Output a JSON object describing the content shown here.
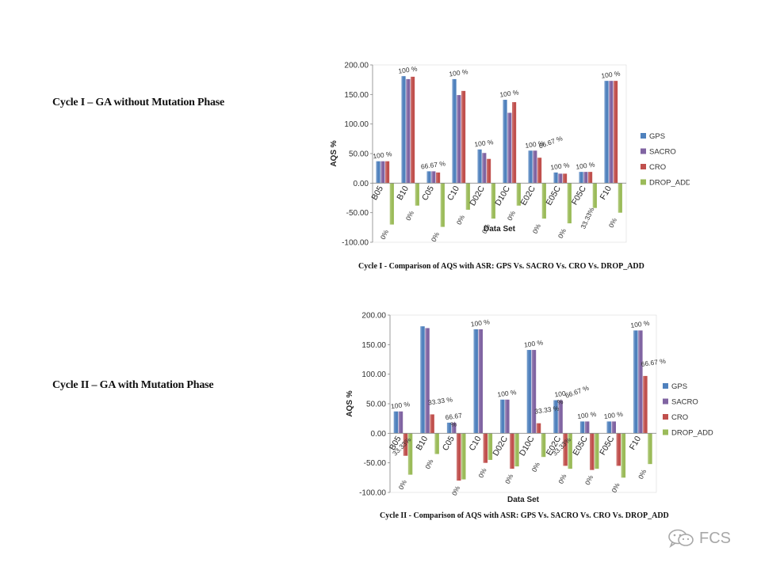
{
  "titles": {
    "cycle1": "Cycle I – GA without Mutation Phase",
    "cycle2": "Cycle II – GA with Mutation Phase"
  },
  "captions": {
    "cycle1": "Cycle I - Comparison of AQS with ASR: GPS Vs. SACRO Vs. CRO Vs. DROP_ADD",
    "cycle2": "Cycle II - Comparison of AQS with ASR: GPS Vs. SACRO Vs. CRO Vs. DROP_ADD"
  },
  "watermark": {
    "text": "FCS",
    "icon": "wechat-icon"
  },
  "colors": {
    "GPS": "#4f81bd",
    "SACRO": "#8064a2",
    "CRO": "#c0504d",
    "DROP_ADD": "#9bbb59"
  },
  "chart_data": [
    {
      "type": "bar",
      "xlabel": "Data Set",
      "ylabel": "AQS %",
      "ylim": [
        -100,
        200
      ],
      "yticks": [
        "200.00",
        "150.00",
        "100.00",
        "50.00",
        "0.00",
        "-50.00",
        "-100.00"
      ],
      "legend_position": "right",
      "categories": [
        "B05",
        "B10",
        "C05",
        "C10",
        "D02C",
        "D10C",
        "E02C",
        "E05C",
        "F05C",
        "F10"
      ],
      "series": [
        {
          "name": "GPS",
          "values": [
            37,
            181,
            20,
            176,
            57,
            141,
            55,
            18,
            19,
            173
          ]
        },
        {
          "name": "SACRO",
          "values": [
            37,
            176,
            20,
            149,
            51,
            119,
            55,
            16,
            19,
            173
          ]
        },
        {
          "name": "CRO",
          "values": [
            37,
            180,
            18,
            156,
            41,
            137,
            43,
            16,
            19,
            173
          ]
        },
        {
          "name": "DROP_ADD",
          "values": [
            -70,
            -38,
            -74,
            -45,
            -60,
            -38,
            -60,
            -68,
            -42,
            -50
          ]
        }
      ],
      "annotations": [
        {
          "category": "B05",
          "text": "100 %",
          "anchor": "top"
        },
        {
          "category": "B10",
          "text": "100 %",
          "anchor": "top"
        },
        {
          "category": "C05",
          "text": "66.67 %",
          "anchor": "top"
        },
        {
          "category": "C10",
          "text": "100 %",
          "anchor": "top"
        },
        {
          "category": "D02C",
          "text": "100 %",
          "anchor": "top"
        },
        {
          "category": "D10C",
          "text": "100 %",
          "anchor": "top"
        },
        {
          "category": "E02C",
          "text": "100 %",
          "anchor": "top"
        },
        {
          "category": "E02C",
          "text": "66.67 %",
          "anchor": "top2"
        },
        {
          "category": "E05C",
          "text": "100 %",
          "anchor": "top"
        },
        {
          "category": "F05C",
          "text": "100 %",
          "anchor": "top"
        },
        {
          "category": "F10",
          "text": "100 %",
          "anchor": "top"
        },
        {
          "category": "B05",
          "text": "0%",
          "anchor": "bottom"
        },
        {
          "category": "B10",
          "text": "0%",
          "anchor": "bottom"
        },
        {
          "category": "C05",
          "text": "0%",
          "anchor": "bottom"
        },
        {
          "category": "C10",
          "text": "0%",
          "anchor": "bottom"
        },
        {
          "category": "D02C",
          "text": "0%",
          "anchor": "bottom"
        },
        {
          "category": "D10C",
          "text": "0%",
          "anchor": "bottom"
        },
        {
          "category": "E02C",
          "text": "0%",
          "anchor": "bottom"
        },
        {
          "category": "E05C",
          "text": "0%",
          "anchor": "bottom"
        },
        {
          "category": "F05C",
          "text": "33.33%",
          "anchor": "bottom"
        },
        {
          "category": "F10",
          "text": "0%",
          "anchor": "bottom"
        }
      ]
    },
    {
      "type": "bar",
      "xlabel": "Data Set",
      "ylabel": "AQS %",
      "ylim": [
        -100,
        200
      ],
      "yticks": [
        "200.00",
        "150.00",
        "100.00",
        "50.00",
        "0.00",
        "-50.00",
        "-100.00"
      ],
      "legend_position": "right",
      "categories": [
        "B05",
        "B10",
        "C05",
        "C10",
        "D02C",
        "D10C",
        "E02C",
        "E05C",
        "F05C",
        "F10"
      ],
      "series": [
        {
          "name": "GPS",
          "values": [
            37,
            181,
            18,
            176,
            57,
            141,
            56,
            20,
            20,
            174
          ]
        },
        {
          "name": "SACRO",
          "values": [
            37,
            178,
            18,
            176,
            57,
            141,
            56,
            20,
            20,
            174
          ]
        },
        {
          "name": "CRO",
          "values": [
            -38,
            32,
            -80,
            -50,
            -60,
            17,
            -55,
            -62,
            -55,
            97
          ]
        },
        {
          "name": "DROP_ADD",
          "values": [
            -70,
            -35,
            -78,
            -45,
            -56,
            -40,
            -60,
            -60,
            -75,
            -52
          ]
        }
      ],
      "annotations": [
        {
          "category": "B05",
          "text": "100 %",
          "anchor": "top"
        },
        {
          "category": "B10",
          "text": "33.33 %",
          "anchor": "cro"
        },
        {
          "category": "C05",
          "text": "66.67",
          "anchor": "top"
        },
        {
          "category": "C05",
          "text": "%",
          "anchor": "top-low"
        },
        {
          "category": "C10",
          "text": "100 %",
          "anchor": "top"
        },
        {
          "category": "D02C",
          "text": "100 %",
          "anchor": "top"
        },
        {
          "category": "D10C",
          "text": "100 %",
          "anchor": "top"
        },
        {
          "category": "D10C",
          "text": "33.33 %",
          "anchor": "cro"
        },
        {
          "category": "E02C",
          "text": "100",
          "anchor": "top"
        },
        {
          "category": "E02C",
          "text": "%",
          "anchor": "top-low"
        },
        {
          "category": "E02C",
          "text": "66.67 %",
          "anchor": "top-right"
        },
        {
          "category": "E05C",
          "text": "100 %",
          "anchor": "top"
        },
        {
          "category": "F05C",
          "text": "100 %",
          "anchor": "top"
        },
        {
          "category": "F10",
          "text": "100 %",
          "anchor": "top"
        },
        {
          "category": "F10",
          "text": "66.67 %",
          "anchor": "cro"
        },
        {
          "category": "B05",
          "text": "33.33%",
          "anchor": "bottom-mid"
        },
        {
          "category": "E02C",
          "text": "33.33%",
          "anchor": "bottom-mid"
        },
        {
          "category": "B05",
          "text": "0%",
          "anchor": "bottom"
        },
        {
          "category": "B10",
          "text": "0%",
          "anchor": "bottom"
        },
        {
          "category": "C05",
          "text": "0%",
          "anchor": "bottom"
        },
        {
          "category": "C10",
          "text": "0%",
          "anchor": "bottom"
        },
        {
          "category": "D02C",
          "text": "0%",
          "anchor": "bottom"
        },
        {
          "category": "D10C",
          "text": "0%",
          "anchor": "bottom"
        },
        {
          "category": "E02C",
          "text": "0%",
          "anchor": "bottom"
        },
        {
          "category": "E05C",
          "text": "0%",
          "anchor": "bottom"
        },
        {
          "category": "F05C",
          "text": "0%",
          "anchor": "bottom"
        },
        {
          "category": "F10",
          "text": "0%",
          "anchor": "bottom"
        }
      ]
    }
  ]
}
